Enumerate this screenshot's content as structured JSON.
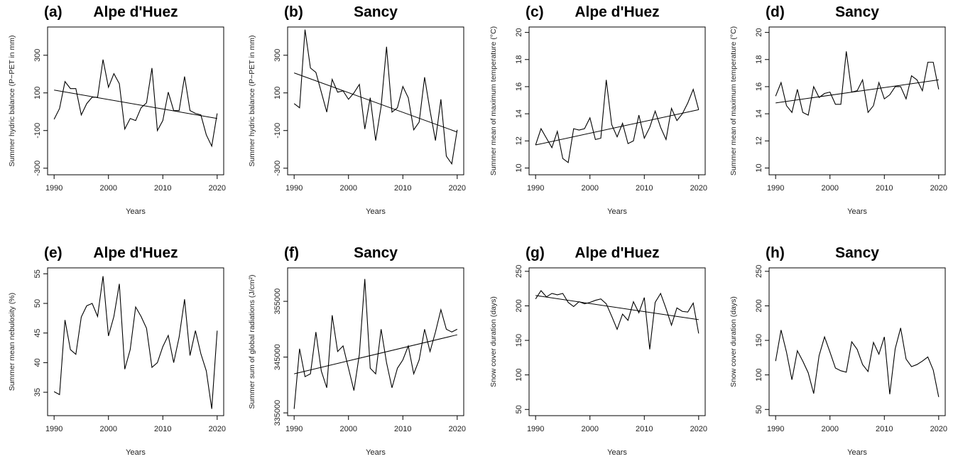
{
  "chart_data": [
    {
      "type": "line",
      "panel": "(a)",
      "title": "Alpe d'Huez",
      "xlabel": "Years",
      "ylabel": "Summer hydric balance (P−PET in mm)",
      "x": [
        1990,
        1991,
        1992,
        1993,
        1994,
        1995,
        1996,
        1997,
        1998,
        1999,
        2000,
        2001,
        2002,
        2003,
        2004,
        2005,
        2006,
        2007,
        2008,
        2009,
        2010,
        2011,
        2012,
        2013,
        2014,
        2015,
        2016,
        2017,
        2018,
        2019,
        2020
      ],
      "values": [
        -40,
        17,
        160,
        123,
        123,
        -17,
        43,
        77,
        77,
        277,
        130,
        202,
        149,
        -92,
        -36,
        -47,
        21,
        47,
        232,
        -100,
        -47,
        104,
        6,
        6,
        187,
        6,
        -9,
        -17,
        -123,
        -183,
        -9
      ],
      "trend": {
        "x": [
          1990,
          2020
        ],
        "values": [
          115,
          -36
        ]
      },
      "xlim": [
        1988.8,
        2021.2
      ],
      "xticks": [
        1990,
        2000,
        2010,
        2020
      ],
      "ylim": [
        -335,
        450
      ],
      "yticks": [
        -300,
        -100,
        100,
        300
      ],
      "color": "#000000"
    },
    {
      "type": "line",
      "panel": "(b)",
      "title": "Sancy",
      "xlabel": "Years",
      "ylabel": "Summer hydric balance (P−PET in mm)",
      "x": [
        1990,
        1991,
        1992,
        1993,
        1994,
        1995,
        1996,
        1997,
        1998,
        1999,
        2000,
        2001,
        2002,
        2003,
        2004,
        2005,
        2006,
        2007,
        2008,
        2009,
        2010,
        2011,
        2012,
        2013,
        2014,
        2015,
        2016,
        2017,
        2018,
        2019,
        2020
      ],
      "values": [
        43,
        21,
        436,
        232,
        209,
        104,
        -2,
        172,
        104,
        111,
        66,
        100,
        145,
        -92,
        74,
        -153,
        28,
        345,
        -2,
        21,
        134,
        74,
        -96,
        -55,
        183,
        6,
        -153,
        66,
        -236,
        -277,
        -96
      ],
      "trend": {
        "x": [
          1990,
          2020
        ],
        "values": [
          206,
          -108
        ]
      },
      "xlim": [
        1988.8,
        2021.2
      ],
      "xticks": [
        1990,
        2000,
        2010,
        2020
      ],
      "ylim": [
        -335,
        450
      ],
      "yticks": [
        -300,
        -100,
        100,
        300
      ],
      "color": "#000000"
    },
    {
      "type": "line",
      "panel": "(c)",
      "title": "Alpe d'Huez",
      "xlabel": "Years",
      "ylabel": "Summer mean of maximum temperature (°C)",
      "x": [
        1990,
        1991,
        1992,
        1993,
        1994,
        1995,
        1996,
        1997,
        1998,
        1999,
        2000,
        2001,
        2002,
        2003,
        2004,
        2005,
        2006,
        2007,
        2008,
        2009,
        2010,
        2011,
        2012,
        2013,
        2014,
        2015,
        2016,
        2017,
        2018,
        2019,
        2020
      ],
      "values": [
        11.7,
        12.9,
        12.2,
        11.5,
        12.7,
        10.7,
        10.4,
        12.9,
        12.8,
        12.9,
        13.7,
        12.1,
        12.2,
        16.5,
        13.2,
        12.3,
        13.3,
        11.8,
        12.0,
        13.9,
        12.2,
        13.0,
        14.2,
        13.0,
        12.1,
        14.4,
        13.5,
        14.0,
        14.8,
        15.8,
        14.3
      ],
      "trend": {
        "x": [
          1990,
          2020
        ],
        "values": [
          11.7,
          14.3
        ]
      },
      "xlim": [
        1988.8,
        2021.2
      ],
      "xticks": [
        1990,
        2000,
        2010,
        2020
      ],
      "ylim": [
        9.5,
        20.4
      ],
      "yticks": [
        10,
        12,
        14,
        16,
        18,
        20
      ],
      "color": "#000000"
    },
    {
      "type": "line",
      "panel": "(d)",
      "title": "Sancy",
      "xlabel": "Years",
      "ylabel": "Summer mean of maximum temperature (°C)",
      "x": [
        1990,
        1991,
        1992,
        1993,
        1994,
        1995,
        1996,
        1997,
        1998,
        1999,
        2000,
        2001,
        2002,
        2003,
        2004,
        2005,
        2006,
        2007,
        2008,
        2009,
        2010,
        2011,
        2012,
        2013,
        2014,
        2015,
        2016,
        2017,
        2018,
        2019,
        2020
      ],
      "values": [
        15.3,
        16.3,
        14.6,
        14.1,
        15.8,
        14.1,
        13.9,
        16.0,
        15.2,
        15.5,
        15.6,
        14.7,
        14.7,
        18.6,
        15.6,
        15.7,
        16.5,
        14.1,
        14.6,
        16.3,
        15.1,
        15.4,
        16.0,
        16.0,
        15.1,
        16.8,
        16.5,
        15.7,
        17.8,
        17.8,
        15.8
      ],
      "trend": {
        "x": [
          1990,
          2020
        ],
        "values": [
          14.8,
          16.5
        ]
      },
      "xlim": [
        1988.8,
        2021.2
      ],
      "xticks": [
        1990,
        2000,
        2010,
        2020
      ],
      "ylim": [
        9.5,
        20.4
      ],
      "yticks": [
        10,
        12,
        14,
        16,
        18,
        20
      ],
      "color": "#000000"
    },
    {
      "type": "line",
      "panel": "(e)",
      "title": "Alpe d'Huez",
      "xlabel": "Years",
      "ylabel": "Summer mean nebulosity (%)",
      "x": [
        1990,
        1991,
        1992,
        1993,
        1994,
        1995,
        1996,
        1997,
        1998,
        1999,
        2000,
        2001,
        2002,
        2003,
        2004,
        2005,
        2006,
        2007,
        2008,
        2009,
        2010,
        2011,
        2012,
        2013,
        2014,
        2015,
        2016,
        2017,
        2018,
        2019,
        2020
      ],
      "values": [
        35.1,
        34.6,
        47.2,
        42.2,
        41.4,
        47.7,
        49.6,
        50.0,
        47.8,
        54.6,
        44.5,
        47.8,
        53.3,
        38.9,
        42.2,
        49.4,
        47.8,
        45.8,
        39.2,
        40.0,
        42.7,
        44.6,
        40.0,
        44.3,
        50.7,
        41.2,
        45.4,
        41.5,
        38.6,
        32.2,
        45.4
      ],
      "xlim": [
        1988.8,
        2021.2
      ],
      "xticks": [
        1990,
        2000,
        2010,
        2020
      ],
      "ylim": [
        31.05,
        56
      ],
      "yticks": [
        35,
        40,
        45,
        50,
        55
      ],
      "color": "#000000"
    },
    {
      "type": "line",
      "panel": "(f)",
      "title": "Sancy",
      "xlabel": "Years",
      "ylabel": "Summer sum of global radiations (J/cm²)",
      "x": [
        1990,
        1991,
        1992,
        1993,
        1994,
        1995,
        1996,
        1997,
        1998,
        1999,
        2000,
        2001,
        2002,
        2003,
        2004,
        2005,
        2006,
        2007,
        2008,
        2009,
        2010,
        2011,
        2012,
        2013,
        2014,
        2015,
        2016,
        2017,
        2018,
        2019,
        2020
      ],
      "values": [
        335700,
        346500,
        341500,
        342000,
        349500,
        342500,
        339500,
        352500,
        346000,
        347000,
        343000,
        339000,
        345500,
        359000,
        343000,
        342000,
        350000,
        344000,
        339500,
        343000,
        344500,
        347000,
        342000,
        344500,
        350000,
        346000,
        349500,
        353500,
        350000,
        349500,
        350000
      ],
      "trend": {
        "x": [
          1990,
          2020
        ],
        "values": [
          342000,
          349000
        ]
      },
      "xlim": [
        1988.8,
        2021.2
      ],
      "xticks": [
        1990,
        2000,
        2010,
        2020
      ],
      "ylim": [
        334500,
        361000
      ],
      "yticks": [
        335000,
        345000,
        355000
      ],
      "color": "#000000"
    },
    {
      "type": "line",
      "panel": "(g)",
      "title": "Alpe d'Huez",
      "xlabel": "Years",
      "ylabel": "Snow cover duration (days)",
      "x": [
        1990,
        1991,
        1992,
        1993,
        1994,
        1995,
        1996,
        1997,
        1998,
        1999,
        2000,
        2001,
        2002,
        2003,
        2004,
        2005,
        2006,
        2007,
        2008,
        2009,
        2010,
        2011,
        2012,
        2013,
        2014,
        2015,
        2016,
        2017,
        2018,
        2019,
        2020
      ],
      "values": [
        210,
        222,
        213,
        218,
        216,
        218,
        205,
        199,
        206,
        203,
        205,
        208,
        210,
        203,
        185,
        166,
        188,
        179,
        206,
        190,
        212,
        137,
        205,
        218,
        196,
        172,
        197,
        192,
        191,
        204,
        160
      ],
      "trend": {
        "x": [
          1990,
          2020
        ],
        "values": [
          215,
          180
        ]
      },
      "xlim": [
        1988.8,
        2021.2
      ],
      "xticks": [
        1990,
        2000,
        2010,
        2020
      ],
      "ylim": [
        41,
        255
      ],
      "yticks": [
        50,
        100,
        150,
        200,
        250
      ],
      "color": "#000000"
    },
    {
      "type": "line",
      "panel": "(h)",
      "title": "Sancy",
      "xlabel": "Years",
      "ylabel": "Snow cover duration (days)",
      "x": [
        1990,
        1991,
        1992,
        1993,
        1994,
        1995,
        1996,
        1997,
        1998,
        1999,
        2000,
        2001,
        2002,
        2003,
        2004,
        2005,
        2006,
        2007,
        2008,
        2009,
        2010,
        2011,
        2012,
        2013,
        2014,
        2015,
        2016,
        2017,
        2018,
        2019,
        2020
      ],
      "values": [
        120,
        165,
        133,
        93,
        135,
        120,
        103,
        73,
        128,
        155,
        133,
        110,
        106,
        104,
        148,
        137,
        115,
        105,
        147,
        130,
        155,
        72,
        138,
        168,
        123,
        112,
        115,
        120,
        126,
        107,
        68
      ],
      "xlim": [
        1988.8,
        2021.2
      ],
      "xticks": [
        1990,
        2000,
        2010,
        2020
      ],
      "ylim": [
        41,
        255
      ],
      "yticks": [
        50,
        100,
        150,
        200,
        250
      ],
      "color": "#000000"
    }
  ]
}
